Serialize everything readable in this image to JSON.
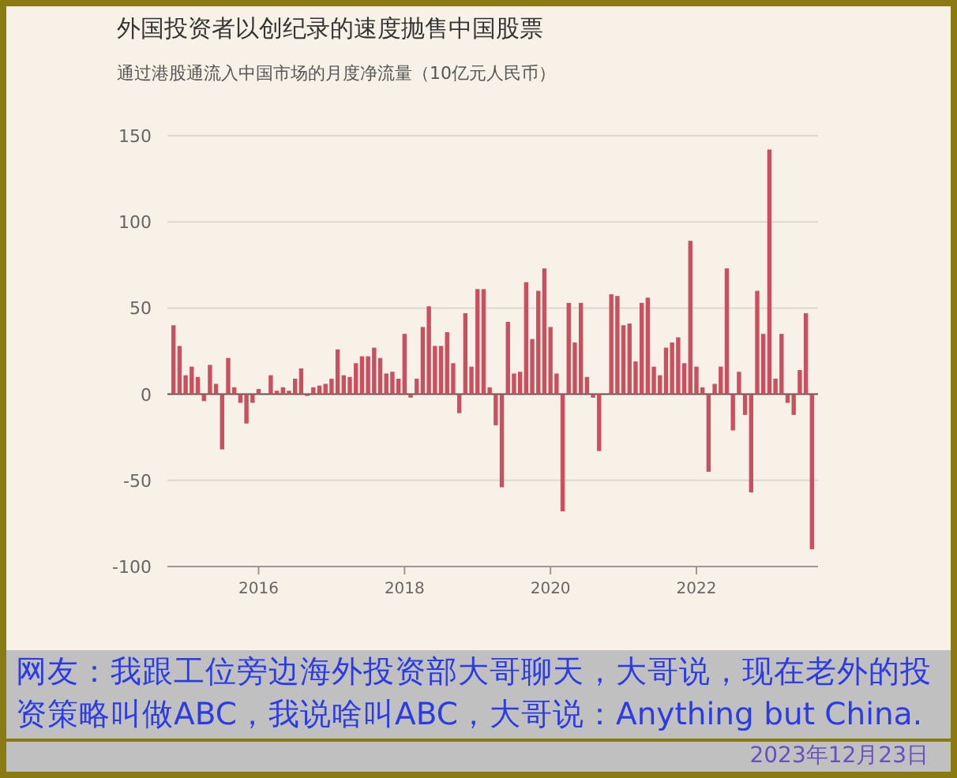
{
  "chart_data": {
    "type": "bar",
    "title": "外国投资者以创纪录的速度抛售中国股票",
    "subtitle": "通过港股通流入中国市场的月度净流量（10亿元人民币）",
    "x": [
      "2014-11",
      "2014-12",
      "2015-01",
      "2015-02",
      "2015-03",
      "2015-04",
      "2015-05",
      "2015-06",
      "2015-07",
      "2015-08",
      "2015-09",
      "2015-10",
      "2015-11",
      "2015-12",
      "2016-01",
      "2016-02",
      "2016-03",
      "2016-04",
      "2016-05",
      "2016-06",
      "2016-07",
      "2016-08",
      "2016-09",
      "2016-10",
      "2016-11",
      "2016-12",
      "2017-01",
      "2017-02",
      "2017-03",
      "2017-04",
      "2017-05",
      "2017-06",
      "2017-07",
      "2017-08",
      "2017-09",
      "2017-10",
      "2017-11",
      "2017-12",
      "2018-01",
      "2018-02",
      "2018-03",
      "2018-04",
      "2018-05",
      "2018-06",
      "2018-07",
      "2018-08",
      "2018-09",
      "2018-10",
      "2018-11",
      "2018-12",
      "2019-01",
      "2019-02",
      "2019-03",
      "2019-04",
      "2019-05",
      "2019-06",
      "2019-07",
      "2019-08",
      "2019-09",
      "2019-10",
      "2019-11",
      "2019-12",
      "2020-01",
      "2020-02",
      "2020-03",
      "2020-04",
      "2020-05",
      "2020-06",
      "2020-07",
      "2020-08",
      "2020-09",
      "2020-10",
      "2020-11",
      "2020-12",
      "2021-01",
      "2021-02",
      "2021-03",
      "2021-04",
      "2021-05",
      "2021-06",
      "2021-07",
      "2021-08",
      "2021-09",
      "2021-10",
      "2021-11",
      "2021-12",
      "2022-01",
      "2022-02",
      "2022-03",
      "2022-04",
      "2022-05",
      "2022-06",
      "2022-07",
      "2022-08",
      "2022-09",
      "2022-10",
      "2022-11",
      "2022-12",
      "2023-01",
      "2023-02",
      "2023-03",
      "2023-04",
      "2023-05",
      "2023-06",
      "2023-07",
      "2023-08"
    ],
    "values": [
      40,
      28,
      11,
      16,
      10,
      -4,
      17,
      6,
      -32,
      21,
      4,
      -5,
      -17,
      -5,
      3,
      0,
      11,
      2,
      4,
      2,
      9,
      15,
      -1,
      4,
      5,
      6,
      9,
      26,
      11,
      10,
      18,
      22,
      22,
      27,
      21,
      12,
      13,
      9,
      35,
      -2,
      9,
      39,
      51,
      28,
      28,
      36,
      18,
      -11,
      47,
      16,
      61,
      61,
      4,
      -18,
      -54,
      42,
      12,
      13,
      65,
      32,
      60,
      73,
      39,
      12,
      -68,
      53,
      30,
      53,
      10,
      -2,
      -33,
      0,
      58,
      57,
      40,
      41,
      19,
      53,
      56,
      16,
      11,
      27,
      30,
      33,
      18,
      89,
      16,
      4,
      -45,
      6,
      16,
      73,
      -21,
      13,
      -12,
      -57,
      60,
      35,
      142,
      9,
      35,
      -5,
      -12,
      14,
      47,
      -90
    ],
    "color": "#c9505f",
    "xlim": [
      "2014-10",
      "2023-09"
    ],
    "xticks": [
      "2016",
      "2018",
      "2020",
      "2022"
    ],
    "ylim": [
      -100,
      150
    ],
    "yticks": [
      -100,
      -50,
      0,
      50,
      100,
      150
    ],
    "grid": "y",
    "annotations": [
      "网友：我跟工位旁边海外投资部大哥聊天，大哥说，现在老外的投资策略叫做ABC，我说啥叫ABC，大哥说：Anything but China.",
      "2023年12月23日"
    ]
  }
}
